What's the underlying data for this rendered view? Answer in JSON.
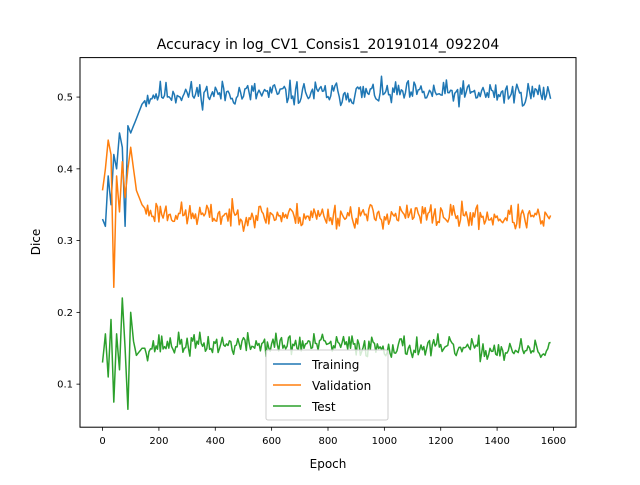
{
  "chart_data": {
    "type": "line",
    "title": "Accuracy in log_CV1_Consis1_20191014_092204",
    "xlabel": "Epoch",
    "ylabel": "Dice",
    "xlim": [
      -80,
      1680
    ],
    "ylim": [
      0.04,
      0.555
    ],
    "xticks": [
      0,
      200,
      400,
      600,
      800,
      1000,
      1200,
      1400,
      1600
    ],
    "yticks": [
      0.1,
      0.2,
      0.3,
      0.4,
      0.5
    ],
    "xtick_labels": [
      "0",
      "200",
      "400",
      "600",
      "800",
      "1000",
      "1200",
      "1400",
      "1600"
    ],
    "ytick_labels": [
      "0.1",
      "0.2",
      "0.3",
      "0.4",
      "0.5"
    ],
    "grid": false,
    "legend_position": "lower center",
    "epoch_start": 0,
    "epoch_end": 1590,
    "epoch_step": 5,
    "series": [
      {
        "name": "Training",
        "color": "#1f77b4",
        "keypoints": [
          [
            0,
            0.33
          ],
          [
            10,
            0.32
          ],
          [
            20,
            0.39
          ],
          [
            30,
            0.35
          ],
          [
            40,
            0.42
          ],
          [
            50,
            0.4
          ],
          [
            60,
            0.45
          ],
          [
            70,
            0.43
          ],
          [
            80,
            0.32
          ],
          [
            90,
            0.46
          ],
          [
            100,
            0.45
          ],
          [
            120,
            0.47
          ],
          [
            140,
            0.49
          ],
          [
            160,
            0.5
          ],
          [
            200,
            0.505
          ],
          [
            300,
            0.505
          ],
          [
            600,
            0.505
          ],
          [
            900,
            0.505
          ],
          [
            1200,
            0.505
          ],
          [
            1590,
            0.505
          ]
        ],
        "noise": 0.012,
        "seed": 11
      },
      {
        "name": "Validation",
        "color": "#ff7f0e",
        "keypoints": [
          [
            0,
            0.37
          ],
          [
            10,
            0.4
          ],
          [
            20,
            0.44
          ],
          [
            30,
            0.42
          ],
          [
            40,
            0.235
          ],
          [
            50,
            0.39
          ],
          [
            60,
            0.34
          ],
          [
            70,
            0.41
          ],
          [
            80,
            0.36
          ],
          [
            90,
            0.4
          ],
          [
            100,
            0.43
          ],
          [
            110,
            0.4
          ],
          [
            120,
            0.37
          ],
          [
            140,
            0.35
          ],
          [
            160,
            0.34
          ],
          [
            200,
            0.34
          ],
          [
            300,
            0.335
          ],
          [
            600,
            0.335
          ],
          [
            900,
            0.335
          ],
          [
            1200,
            0.335
          ],
          [
            1590,
            0.33
          ]
        ],
        "noise": 0.012,
        "seed": 23
      },
      {
        "name": "Test",
        "color": "#2ca02c",
        "keypoints": [
          [
            0,
            0.13
          ],
          [
            10,
            0.17
          ],
          [
            20,
            0.11
          ],
          [
            30,
            0.19
          ],
          [
            40,
            0.075
          ],
          [
            50,
            0.17
          ],
          [
            60,
            0.12
          ],
          [
            70,
            0.22
          ],
          [
            80,
            0.15
          ],
          [
            90,
            0.065
          ],
          [
            100,
            0.2
          ],
          [
            110,
            0.16
          ],
          [
            120,
            0.14
          ],
          [
            140,
            0.15
          ],
          [
            160,
            0.15
          ],
          [
            200,
            0.155
          ],
          [
            400,
            0.155
          ],
          [
            800,
            0.155
          ],
          [
            1200,
            0.15
          ],
          [
            1590,
            0.145
          ]
        ],
        "noise": 0.011,
        "seed": 37
      }
    ]
  }
}
